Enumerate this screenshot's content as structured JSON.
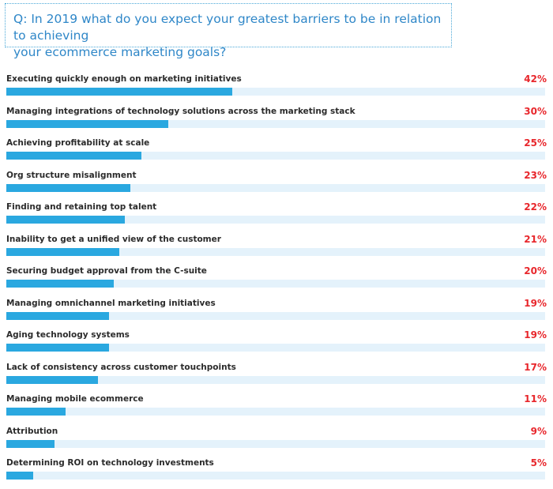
{
  "question": {
    "line1": "Q: In 2019 what do you expect your greatest barriers to be in relation to achieving",
    "line2": "your ecommerce marketing goals?"
  },
  "colors": {
    "bar": "#2aa8e0",
    "track": "#e4f2fb",
    "value_text": "#e8272c",
    "question_text": "#2f87c8"
  },
  "chart_data": {
    "type": "bar",
    "orientation": "horizontal",
    "categories": [
      "Executing quickly enough on marketing initiatives",
      "Managing integrations of technology solutions across the marketing stack",
      "Achieving profitability at scale",
      "Org structure misalignment",
      "Finding and retaining top talent",
      "Inability to get a unified view of the customer",
      "Securing budget approval from the C-suite",
      "Managing omnichannel marketing initiatives",
      "Aging technology systems",
      "Lack of consistency across customer touchpoints",
      "Managing mobile ecommerce",
      "Attribution",
      "Determining ROI on technology investments"
    ],
    "values": [
      42,
      30,
      25,
      23,
      22,
      21,
      20,
      19,
      19,
      17,
      11,
      9,
      5
    ],
    "value_labels": [
      "42%",
      "30%",
      "25%",
      "23%",
      "22%",
      "21%",
      "20%",
      "19%",
      "19%",
      "17%",
      "11%",
      "9%",
      "5%"
    ],
    "title": "Q: In 2019 what do you expect your greatest barriers to be in relation to achieving your ecommerce marketing goals?",
    "xlim": [
      0,
      100
    ]
  }
}
